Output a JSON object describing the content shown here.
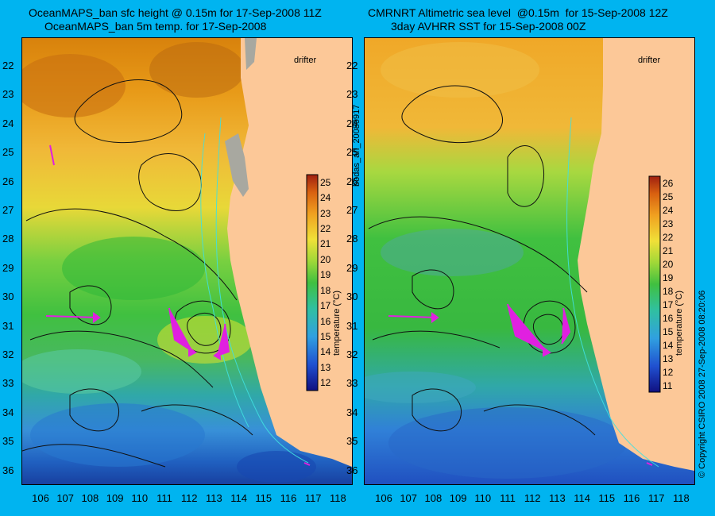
{
  "left": {
    "title_line1": "OceanMAPS_ban sfc height @ 0.15m for 17-Sep-2008 11Z",
    "title_line2": "OceanMAPS_ban 5m temp. for 17-Sep-2008",
    "drifter_label": "drifter",
    "colorbar": {
      "min": 11.5,
      "max": 25.5,
      "ticks": [
        12,
        13,
        14,
        15,
        16,
        17,
        18,
        19,
        20,
        21,
        22,
        23,
        24,
        25
      ],
      "title": "temperature (°C)"
    }
  },
  "right": {
    "title_line1": "CMRNRT Altimetric sea level  @0.15m  for 15-Sep-2008 12Z",
    "title_line2": "3day AVHRR SST for 15-Sep-2008 00Z",
    "drifter_label": "drifter",
    "colorbar": {
      "min": 10.5,
      "max": 26.5,
      "ticks": [
        11,
        12,
        13,
        14,
        15,
        16,
        17,
        18,
        19,
        20,
        21,
        22,
        23,
        24,
        25,
        26
      ],
      "title": "temperature (°C)"
    }
  },
  "lat_ticks": [
    "22",
    "23",
    "24",
    "25",
    "26",
    "27",
    "28",
    "29",
    "30",
    "31",
    "32",
    "33",
    "34",
    "35",
    "36"
  ],
  "lon_ticks": [
    "106",
    "107",
    "108",
    "109",
    "110",
    "111",
    "112",
    "113",
    "114",
    "115",
    "116",
    "117",
    "118"
  ],
  "side_label": "bodas_an_20080917",
  "copyright": "© Copyright CSIRO 2008   27-Sep-2008 08:20:06",
  "colors": {
    "background": "#00b4f0",
    "land": "#fcc898",
    "arrows": "#e020e0"
  }
}
